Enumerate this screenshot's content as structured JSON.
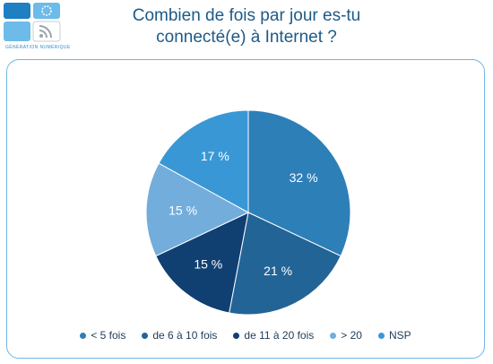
{
  "logo": {
    "text": "GÉNÉRATION NUMÉRIQUE",
    "color_dark": "#1e7fc3",
    "color_light": "#6cbbe8",
    "color_grey": "#9aa3a9"
  },
  "chart_data": {
    "type": "pie",
    "title_lines": [
      "Combien de fois par jour es-tu",
      "connecté(e) à Internet ?"
    ],
    "slices": [
      {
        "name": "< 5 fois",
        "value": 32,
        "label": "32 %",
        "color": "#2d7fb8"
      },
      {
        "name": "de 6 à 10 fois",
        "value": 21,
        "label": "21 %",
        "color": "#236497"
      },
      {
        "name": "de 11 à 20 fois",
        "value": 15,
        "label": "15 %",
        "color": "#103f72"
      },
      {
        "name": "> 20",
        "value": 15,
        "label": "15 %",
        "color": "#73addb"
      },
      {
        "name": "NSP",
        "value": 17,
        "label": "17 %",
        "color": "#3a97d6"
      }
    ],
    "legend_position": "bottom"
  }
}
